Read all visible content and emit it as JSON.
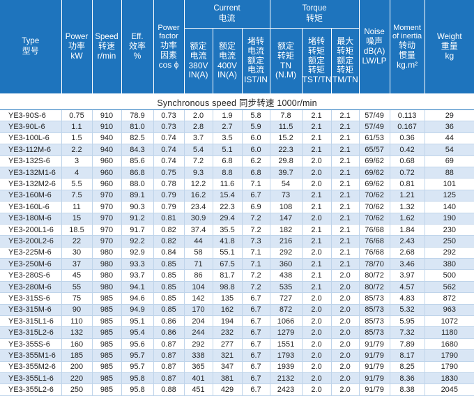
{
  "header": {
    "type": [
      "Type",
      "型号"
    ],
    "power": [
      "Power",
      "功率",
      "kW"
    ],
    "speed": [
      "Speed",
      "转速",
      "r/min"
    ],
    "eff": [
      "Eff.",
      "效率",
      "%"
    ],
    "pf": [
      "Power",
      "factor",
      "功率",
      "因素",
      "cos ϕ"
    ],
    "current_group": [
      "Current",
      "电流"
    ],
    "current_cols": [
      [
        "额定",
        "电流",
        "380V",
        "IN(A)"
      ],
      [
        "额定",
        "电流",
        "400V",
        "IN(A)"
      ],
      [
        "堵转",
        "电流",
        "额定",
        "电流",
        "IST/IN"
      ]
    ],
    "torque_group": [
      "Torque",
      "转矩"
    ],
    "torque_cols": [
      [
        "额定",
        "转矩",
        "TN",
        "(N.M)"
      ],
      [
        "堵转",
        "转矩",
        "额定",
        "转矩",
        "TST/TN"
      ],
      [
        "最大",
        "转矩",
        "额定",
        "转矩",
        "TM/TN"
      ]
    ],
    "noise": [
      "Noise",
      "噪声",
      "dB(A)",
      "LW/LP"
    ],
    "inertia": [
      "Moment",
      "of inertia",
      "转动",
      "惯量",
      "kg.m²"
    ],
    "weight": [
      "Weight",
      "重量",
      "kg"
    ]
  },
  "sync_speed": "Synchronous speed 同步转速  1000r/min",
  "rows": [
    [
      "YE3-90S-6",
      "0.75",
      "910",
      "78.9",
      "0.73",
      "2.0",
      "1.9",
      "5.8",
      "7.8",
      "2.1",
      "2.1",
      "57/49",
      "0.113",
      "29"
    ],
    [
      "YE3-90L-6",
      "1.1",
      "910",
      "81.0",
      "0.73",
      "2.8",
      "2.7",
      "5.9",
      "11.5",
      "2.1",
      "2.1",
      "57/49",
      "0.167",
      "36"
    ],
    [
      "YE3-100L-6",
      "1.5",
      "940",
      "82.5",
      "0.74",
      "3.7",
      "3.5",
      "6.0",
      "15.2",
      "2.1",
      "2.1",
      "61/53",
      "0.36",
      "44"
    ],
    [
      "YE3-112M-6",
      "2.2",
      "940",
      "84.3",
      "0.74",
      "5.4",
      "5.1",
      "6.0",
      "22.3",
      "2.1",
      "2.1",
      "65/57",
      "0.42",
      "54"
    ],
    [
      "YE3-132S-6",
      "3",
      "960",
      "85.6",
      "0.74",
      "7.2",
      "6.8",
      "6.2",
      "29.8",
      "2.0",
      "2.1",
      "69/62",
      "0.68",
      "69"
    ],
    [
      "YE3-132M1-6",
      "4",
      "960",
      "86.8",
      "0.75",
      "9.3",
      "8.8",
      "6.8",
      "39.7",
      "2.0",
      "2.1",
      "69/62",
      "0.72",
      "88"
    ],
    [
      "YE3-132M2-6",
      "5.5",
      "960",
      "88.0",
      "0.78",
      "12.2",
      "11.6",
      "7.1",
      "54",
      "2.0",
      "2.1",
      "69/62",
      "0.81",
      "101"
    ],
    [
      "YE3-160M-6",
      "7.5",
      "970",
      "89.1",
      "0.79",
      "16.2",
      "15.4",
      "6.7",
      "73",
      "2.1",
      "2.1",
      "70/62",
      "1.21",
      "125"
    ],
    [
      "YE3-160L-6",
      "11",
      "970",
      "90.3",
      "0.79",
      "23.4",
      "22.3",
      "6.9",
      "108",
      "2.1",
      "2.1",
      "70/62",
      "1.32",
      "140"
    ],
    [
      "YE3-180M-6",
      "15",
      "970",
      "91.2",
      "0.81",
      "30.9",
      "29.4",
      "7.2",
      "147",
      "2.0",
      "2.1",
      "70/62",
      "1.62",
      "190"
    ],
    [
      "YE3-200L1-6",
      "18.5",
      "970",
      "91.7",
      "0.82",
      "37.4",
      "35.5",
      "7.2",
      "182",
      "2.1",
      "2.1",
      "76/68",
      "1.84",
      "230"
    ],
    [
      "YE3-200L2-6",
      "22",
      "970",
      "92.2",
      "0.82",
      "44",
      "41.8",
      "7.3",
      "216",
      "2.1",
      "2.1",
      "76/68",
      "2.43",
      "250"
    ],
    [
      "YE3-225M-6",
      "30",
      "980",
      "92.9",
      "0.84",
      "58",
      "55.1",
      "7.1",
      "292",
      "2.0",
      "2.1",
      "76/68",
      "2.68",
      "292"
    ],
    [
      "YE3-250M-6",
      "37",
      "980",
      "93.3",
      "0.85",
      "71",
      "67.5",
      "7.1",
      "360",
      "2.1",
      "2.1",
      "78/70",
      "3.46",
      "380"
    ],
    [
      "YE3-280S-6",
      "45",
      "980",
      "93.7",
      "0.85",
      "86",
      "81.7",
      "7.2",
      "438",
      "2.1",
      "2.0",
      "80/72",
      "3.97",
      "500"
    ],
    [
      "YE3-280M-6",
      "55",
      "980",
      "94.1",
      "0.85",
      "104",
      "98.8",
      "7.2",
      "535",
      "2.1",
      "2.0",
      "80/72",
      "4.57",
      "562"
    ],
    [
      "YE3-315S-6",
      "75",
      "985",
      "94.6",
      "0.85",
      "142",
      "135",
      "6.7",
      "727",
      "2.0",
      "2.0",
      "85/73",
      "4.83",
      "872"
    ],
    [
      "YE3-315M-6",
      "90",
      "985",
      "94.9",
      "0.85",
      "170",
      "162",
      "6.7",
      "872",
      "2.0",
      "2.0",
      "85/73",
      "5.32",
      "963"
    ],
    [
      "YE3-315L1-6",
      "110",
      "985",
      "95.1",
      "0.86",
      "204",
      "194",
      "6.7",
      "1066",
      "2.0",
      "2.0",
      "85/73",
      "5.95",
      "1072"
    ],
    [
      "YE3-315L2-6",
      "132",
      "985",
      "95.4",
      "0.86",
      "244",
      "232",
      "6.7",
      "1279",
      "2.0",
      "2.0",
      "85/73",
      "7.32",
      "1180"
    ],
    [
      "YE3-355S-6",
      "160",
      "985",
      "95.6",
      "0.87",
      "292",
      "277",
      "6.7",
      "1551",
      "2.0",
      "2.0",
      "91/79",
      "7.89",
      "1680"
    ],
    [
      "YE3-355M1-6",
      "185",
      "985",
      "95.7",
      "0.87",
      "338",
      "321",
      "6.7",
      "1793",
      "2.0",
      "2.0",
      "91/79",
      "8.17",
      "1790"
    ],
    [
      "YE3-355M2-6",
      "200",
      "985",
      "95.7",
      "0.87",
      "365",
      "347",
      "6.7",
      "1939",
      "2.0",
      "2.0",
      "91/79",
      "8.25",
      "1790"
    ],
    [
      "YE3-355L1-6",
      "220",
      "985",
      "95.8",
      "0.87",
      "401",
      "381",
      "6.7",
      "2132",
      "2.0",
      "2.0",
      "91/79",
      "8.36",
      "1830"
    ],
    [
      "YE3-355L2-6",
      "250",
      "985",
      "95.8",
      "0.88",
      "451",
      "429",
      "6.7",
      "2423",
      "2.0",
      "2.0",
      "91/79",
      "8.38",
      "2045"
    ]
  ],
  "colors": {
    "header_bg": "#1e74bd",
    "header_text": "#ffffff",
    "stripe": "#d9e6f5"
  }
}
